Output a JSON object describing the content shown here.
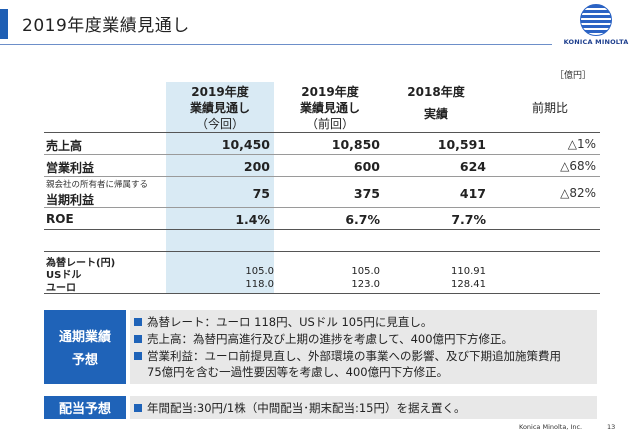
{
  "header": {
    "title": "2019年度業績見通し",
    "logo_text": "KONICA MINOLTA"
  },
  "unit": "［億円］",
  "columns": [
    {
      "line1": "2019年度",
      "line2": "業績見通し",
      "line3": "（今回）"
    },
    {
      "line1": "2019年度",
      "line2": "業績見通し",
      "line3": "（前回）"
    },
    {
      "line1": "2018年度",
      "line2": "実績"
    },
    {
      "line1": "前期比"
    }
  ],
  "rows": [
    {
      "label": "売上高",
      "values": [
        "10,450",
        "10,850",
        "10,591"
      ],
      "change": "△1%"
    },
    {
      "label": "営業利益",
      "values": [
        "200",
        "600",
        "624"
      ],
      "change": "△68%"
    },
    {
      "sublabel": "親会社の所有者に帰属する",
      "label": "当期利益",
      "values": [
        "75",
        "375",
        "417"
      ],
      "change": "△82%"
    },
    {
      "label": "ROE",
      "values": [
        "1.4%",
        "6.7%",
        "7.7%"
      ],
      "change": ""
    }
  ],
  "fx": {
    "title": "為替レート(円)",
    "rows": [
      {
        "label": "USドル",
        "values": [
          "105.0",
          "105.0",
          "110.91"
        ]
      },
      {
        "label": "ユーロ",
        "values": [
          "118.0",
          "123.0",
          "128.41"
        ]
      }
    ]
  },
  "forecast": {
    "label_line1": "通期業績",
    "label_line2": "予想",
    "bullets": [
      "為替レート：ユーロ 118円、USドル 105円に見直し。",
      "売上高：為替円高進行及び上期の進捗を考慮して、400億円下方修正。",
      "営業利益：ユーロ前提見直し、外部環境の事業への影響、及び下期追加施策費用",
      "75億円を含む一過性要因等を考慮し、400億円下方修正。"
    ]
  },
  "dividend": {
    "label": "配当予想",
    "bullet": "年間配当:30円/1株（中間配当･期末配当:15円）を据え置く。"
  },
  "footer": {
    "company": "Konica Minolta, Inc.",
    "page": "13"
  },
  "colors": {
    "accent": "#1f63b8",
    "highlight": "#d9eaf4",
    "panel": "#e8e8e8"
  }
}
